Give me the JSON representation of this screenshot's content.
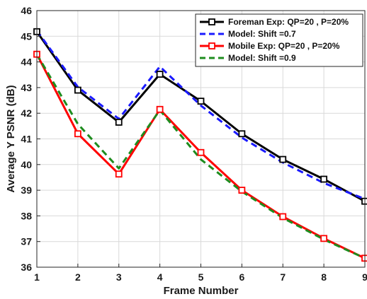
{
  "chart_data": {
    "type": "line",
    "xlabel": "Frame Number",
    "ylabel": "Average Y PSNR (dB)",
    "xlim": [
      1,
      9
    ],
    "ylim": [
      36,
      46
    ],
    "x_ticks": [
      "1",
      "2",
      "3",
      "4",
      "5",
      "6",
      "7",
      "8",
      "9"
    ],
    "y_ticks": [
      "36",
      "37",
      "38",
      "39",
      "40",
      "41",
      "42",
      "43",
      "44",
      "45",
      "46"
    ],
    "grid": true,
    "legend_position": "top-right",
    "x": [
      1,
      2,
      3,
      4,
      5,
      6,
      7,
      8,
      9
    ],
    "series": [
      {
        "name": "Foreman Exp: QP=20 , P=20%",
        "color": "#000000",
        "line_style": "solid",
        "marker": "square",
        "values": [
          45.18,
          42.9,
          41.65,
          43.52,
          42.47,
          41.2,
          40.2,
          39.43,
          38.57
        ]
      },
      {
        "name": "Model: Shift =0.7",
        "color": "#1a1aff",
        "line_style": "dashed",
        "marker": "none",
        "values": [
          45.22,
          43.02,
          41.78,
          43.82,
          42.3,
          41.05,
          40.08,
          39.28,
          38.66
        ]
      },
      {
        "name": "Mobile Exp: QP=20 , P=20%",
        "color": "#ff0000",
        "line_style": "solid",
        "marker": "square",
        "values": [
          44.3,
          41.2,
          39.63,
          42.15,
          40.47,
          39.0,
          37.97,
          37.12,
          36.35
        ]
      },
      {
        "name": "Model: Shift =0.9",
        "color": "#1e8c1e",
        "line_style": "dashed",
        "marker": "none",
        "values": [
          44.3,
          41.58,
          39.85,
          42.12,
          40.2,
          38.95,
          37.92,
          37.08,
          36.35
        ]
      }
    ]
  }
}
